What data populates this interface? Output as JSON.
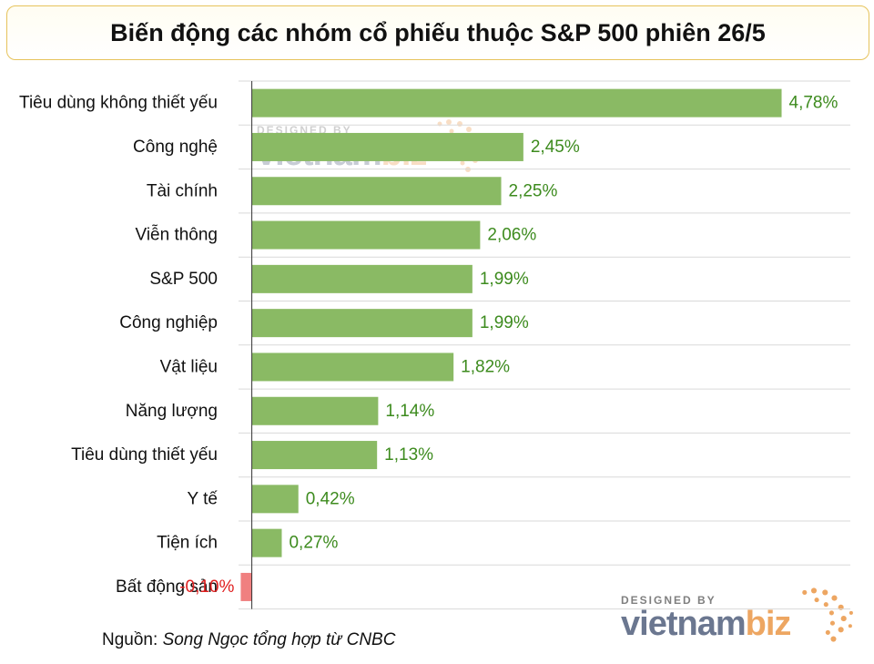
{
  "chart_data": {
    "type": "bar",
    "orientation": "horizontal",
    "title": "Biến động các nhóm cổ phiếu thuộc S&P 500 phiên 26/5",
    "categories": [
      "Tiêu dùng không thiết yếu",
      "Công nghệ",
      "Tài chính",
      "Viễn thông",
      "S&P 500",
      "Công nghiệp",
      "Vật liệu",
      "Năng lượng",
      "Tiêu dùng thiết yếu",
      "Y tế",
      "Tiện ích",
      "Bất động sản"
    ],
    "values": [
      4.78,
      2.45,
      2.25,
      2.06,
      1.99,
      1.99,
      1.82,
      1.14,
      1.13,
      0.42,
      0.27,
      -0.1
    ],
    "value_labels": [
      "4,78%",
      "2,45%",
      "2,25%",
      "2,06%",
      "1,99%",
      "1,99%",
      "1,82%",
      "1,14%",
      "1,13%",
      "0,42%",
      "0,27%",
      "-0,10%"
    ],
    "xlim": [
      -0.12,
      5.4
    ],
    "grid": true,
    "colors": {
      "positive": "#8aba64",
      "negative": "#f08080",
      "positive_label": "#3d8b1e",
      "negative_label": "#e02020"
    }
  },
  "source": {
    "label": "Nguồn:",
    "text": "Song Ngọc tổng hợp từ CNBC"
  },
  "watermark": {
    "designed_by": "DESIGNED BY",
    "brand_a": "vietnam",
    "brand_b": "biz"
  }
}
